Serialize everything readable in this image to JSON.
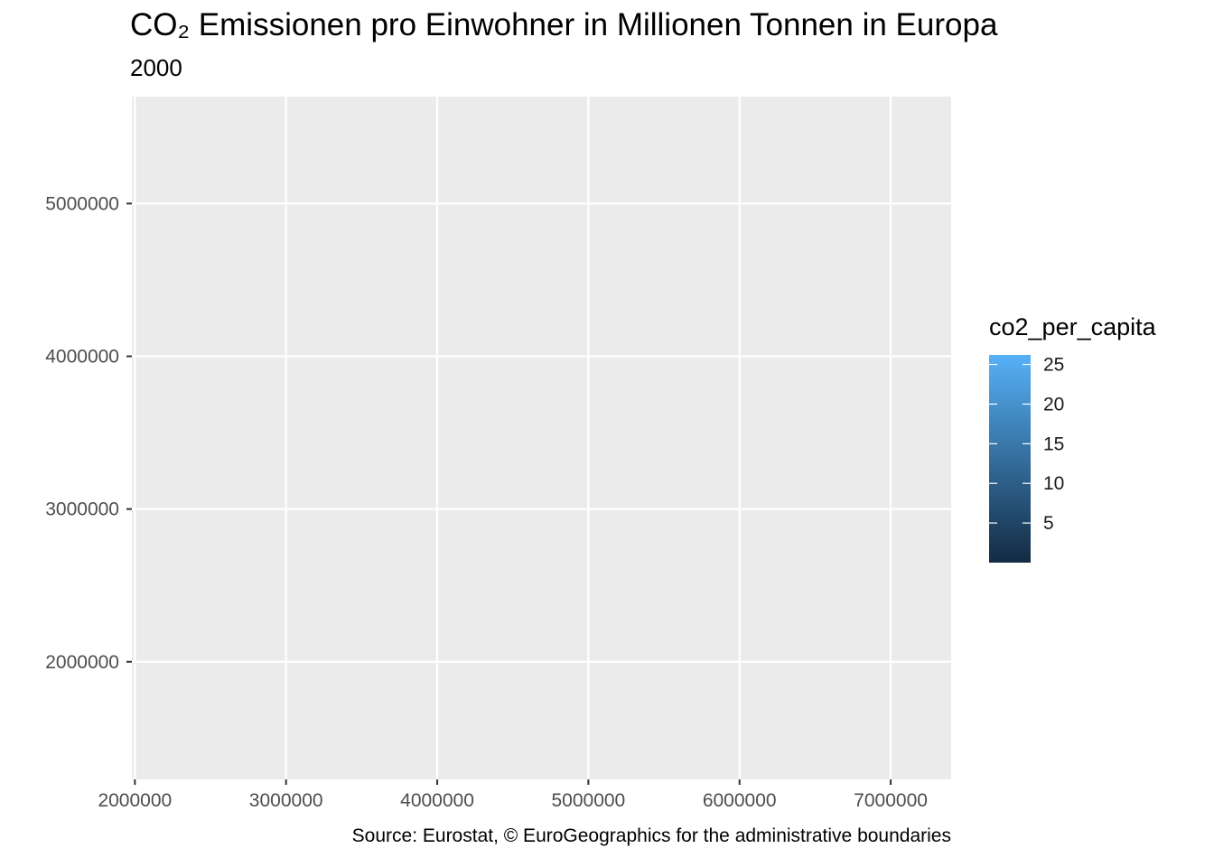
{
  "title": "CO₂ Emissionen pro Einwohner in Millionen Tonnen in Europa",
  "subtitle": "2000",
  "caption": "Source: Eurostat, © EuroGeographics for the administrative boundaries",
  "chart_data": {
    "type": "heatmap",
    "title": "CO₂ Emissionen pro Einwohner in Millionen Tonnen in Europa",
    "subtitle": "2000",
    "xlabel": "",
    "ylabel": "",
    "xlim": [
      1980000,
      7400000
    ],
    "ylim": [
      1230000,
      5700000
    ],
    "x_ticks": [
      2000000,
      3000000,
      4000000,
      5000000,
      6000000,
      7000000
    ],
    "x_tick_labels": [
      "2000000",
      "3000000",
      "4000000",
      "5000000",
      "6000000",
      "7000000"
    ],
    "y_ticks": [
      2000000,
      3000000,
      4000000,
      5000000
    ],
    "y_tick_labels": [
      "2000000",
      "3000000",
      "4000000",
      "5000000"
    ],
    "grid": true,
    "panel_background": "#ebebeb",
    "grid_color": "#ffffff",
    "data": [],
    "legend": {
      "title": "co2_per_capita",
      "position": "right",
      "range": [
        0,
        26.2
      ],
      "ticks": [
        5,
        10,
        15,
        20,
        25
      ],
      "tick_labels": [
        "5",
        "10",
        "15",
        "20",
        "25"
      ],
      "color_low": "#132b43",
      "color_high": "#56b1f7"
    }
  }
}
